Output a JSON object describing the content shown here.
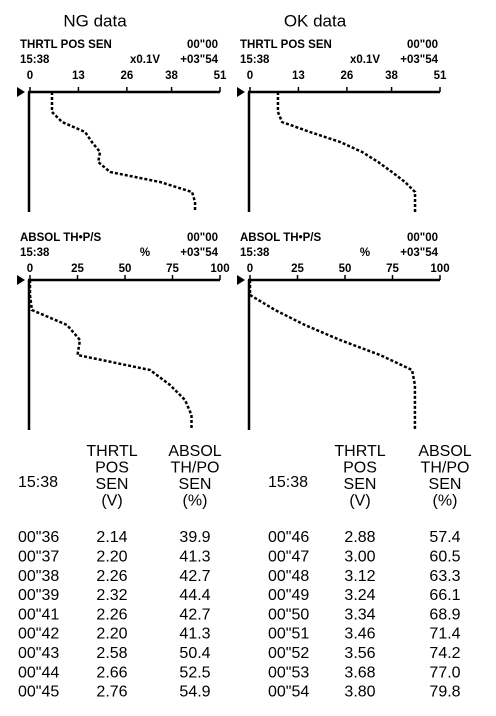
{
  "panels": [
    {
      "title": "NG data",
      "charts": [
        {
          "label": "THRTL  POS  SEN",
          "time_start": "00\"00",
          "time_label": "15:38",
          "unit": "x0.1V",
          "time_end": "+03\"54",
          "xlim": [
            0,
            51
          ],
          "xticks": [
            0,
            13,
            26,
            38,
            51
          ],
          "values": [
            5.9,
            5.9,
            5.9,
            8.6,
            14.8,
            16.6,
            18.8,
            18.3,
            21.5,
            34.9,
            43.5,
            44.3,
            44.3
          ]
        },
        {
          "label": "ABSOL  TH•P/S",
          "time_start": "00\"00",
          "time_label": "15:38",
          "unit": "%",
          "time_end": "+03\"54",
          "xlim": [
            0,
            100
          ],
          "xticks": [
            0,
            25,
            50,
            75,
            100
          ],
          "values": [
            0,
            0,
            1,
            19.5,
            26.3,
            25,
            63.2,
            73.7,
            81.6,
            85,
            85
          ]
        }
      ],
      "table": {
        "time_header": "15:38",
        "columns": [
          [
            "THRTL",
            "POS",
            "SEN",
            "(V)"
          ],
          [
            "ABSOL",
            "TH/PO",
            "SEN",
            "(%)"
          ]
        ],
        "rows": [
          [
            "00\"36",
            "2.14",
            "39.9"
          ],
          [
            "00\"37",
            "2.20",
            "41.3"
          ],
          [
            "00\"38",
            "2.26",
            "42.7"
          ],
          [
            "00\"39",
            "2.32",
            "44.4"
          ],
          [
            "00\"41",
            "2.26",
            "42.7"
          ],
          [
            "00\"42",
            "2.20",
            "41.3"
          ],
          [
            "00\"43",
            "2.58",
            "50.4"
          ],
          [
            "00\"44",
            "2.66",
            "52.5"
          ],
          [
            "00\"45",
            "2.76",
            "54.9"
          ]
        ]
      }
    },
    {
      "title": "OK data",
      "charts": [
        {
          "label": "THRTL  POS  SEN",
          "time_start": "00\"00",
          "time_label": "15:38",
          "unit": "x0.1V",
          "time_end": "+03\"54",
          "xlim": [
            0,
            51
          ],
          "xticks": [
            0,
            13,
            26,
            38,
            51
          ],
          "values": [
            7.5,
            7.5,
            7.5,
            8.6,
            16.1,
            24.2,
            30.1,
            34.4,
            38.1,
            41.6,
            44.3,
            44.3,
            44.3
          ]
        },
        {
          "label": "ABSOL  TH•P/S",
          "time_start": "00\"00",
          "time_label": "15:38",
          "unit": "%",
          "time_end": "+03\"54",
          "xlim": [
            0,
            100
          ],
          "xticks": [
            0,
            25,
            50,
            75,
            100
          ],
          "values": [
            0,
            0,
            13.2,
            28.9,
            47.4,
            68.4,
            85.3,
            86.8,
            86.8,
            86.8,
            86.8
          ]
        }
      ],
      "table": {
        "time_header": "15:38",
        "columns": [
          [
            "THRTL",
            "POS",
            "SEN",
            "(V)"
          ],
          [
            "ABSOL",
            "TH/PO",
            "SEN",
            "(%)"
          ]
        ],
        "rows": [
          [
            "00\"46",
            "2.88",
            "57.4"
          ],
          [
            "00\"47",
            "3.00",
            "60.5"
          ],
          [
            "00\"48",
            "3.12",
            "63.3"
          ],
          [
            "00\"49",
            "3.24",
            "66.1"
          ],
          [
            "00\"50",
            "3.34",
            "68.9"
          ],
          [
            "00\"51",
            "3.46",
            "71.4"
          ],
          [
            "00\"52",
            "3.56",
            "74.2"
          ],
          [
            "00\"53",
            "3.68",
            "77.0"
          ],
          [
            "00\"54",
            "3.80",
            "79.8"
          ]
        ]
      }
    }
  ]
}
